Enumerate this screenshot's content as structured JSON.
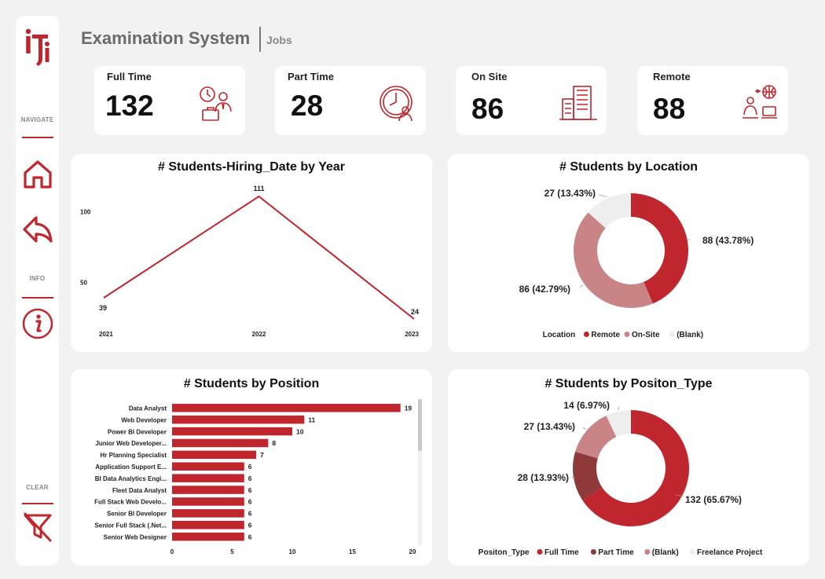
{
  "header": {
    "title": "Examination System",
    "subtitle": "Jobs"
  },
  "sidebar": {
    "logo_icon": "iti-logo-icon",
    "navigate_label": "NAVIGATE",
    "info_label": "INFO",
    "clear_label": "CLEAR"
  },
  "kpis": [
    {
      "label": "Full Time",
      "value": "132",
      "icon": "full-time-worker-icon"
    },
    {
      "label": "Part Time",
      "value": "28",
      "icon": "part-time-clock-icon"
    },
    {
      "label": "On Site",
      "value": "86",
      "icon": "office-building-icon"
    },
    {
      "label": "Remote",
      "value": "88",
      "icon": "remote-work-icon"
    }
  ],
  "colors": {
    "accent": "#c0262d",
    "dark": "#8f3a3a",
    "medium": "#c98586",
    "light": "#eeeeee"
  },
  "chart_data": [
    {
      "type": "line",
      "title": "# Students-Hiring_Date by Year",
      "x": [
        "2021",
        "2022",
        "2023"
      ],
      "y": [
        39,
        111,
        24
      ],
      "y_ticks": [
        "100",
        "50"
      ],
      "ylim": [
        24,
        111
      ],
      "grid": false
    },
    {
      "type": "pie",
      "title": "# Students by Location",
      "legend_title": "Location",
      "legend_position": "bottom",
      "slices": [
        {
          "name": "Remote",
          "value": 88,
          "label": "88 (43.78%)",
          "color": "#c0262d"
        },
        {
          "name": "On-Site",
          "value": 86,
          "label": "86 (42.79%)",
          "color": "#c98586"
        },
        {
          "name": "(Blank)",
          "value": 27,
          "label": "27 (13.43%)",
          "color": "#eeeeee"
        }
      ]
    },
    {
      "type": "bar",
      "orientation": "horizontal",
      "title": "# Students by Position",
      "categories": [
        "Data Analyst",
        "Web Developer",
        "Power BI Developer",
        "Junior Web Developer...",
        "Hr Planning Specialist",
        "Application Support E...",
        "BI Data Analytics Engi...",
        "Fleet Data Analyst",
        "Full Stack Web Develo...",
        "Senior BI Developer",
        "Senior Full Stack (.Net...",
        "Senior Web Designer"
      ],
      "values": [
        19,
        11,
        10,
        8,
        7,
        6,
        6,
        6,
        6,
        6,
        6,
        6
      ],
      "x_ticks": [
        "0",
        "5",
        "10",
        "15",
        "20"
      ],
      "xlim": [
        0,
        20
      ]
    },
    {
      "type": "pie",
      "title": "# Students by Positon_Type",
      "legend_title": "Positon_Type",
      "legend_position": "bottom",
      "slices": [
        {
          "name": "Full Time",
          "value": 132,
          "label": "132 (65.67%)",
          "color": "#c0262d"
        },
        {
          "name": "Part Time",
          "value": 28,
          "label": "28 (13.93%)",
          "color": "#8f3a3a"
        },
        {
          "name": "(Blank)",
          "value": 27,
          "label": "27 (13.43%)",
          "color": "#c98586"
        },
        {
          "name": "Freelance Project",
          "value": 14,
          "label": "14 (6.97%)",
          "color": "#eeeeee"
        }
      ]
    }
  ]
}
